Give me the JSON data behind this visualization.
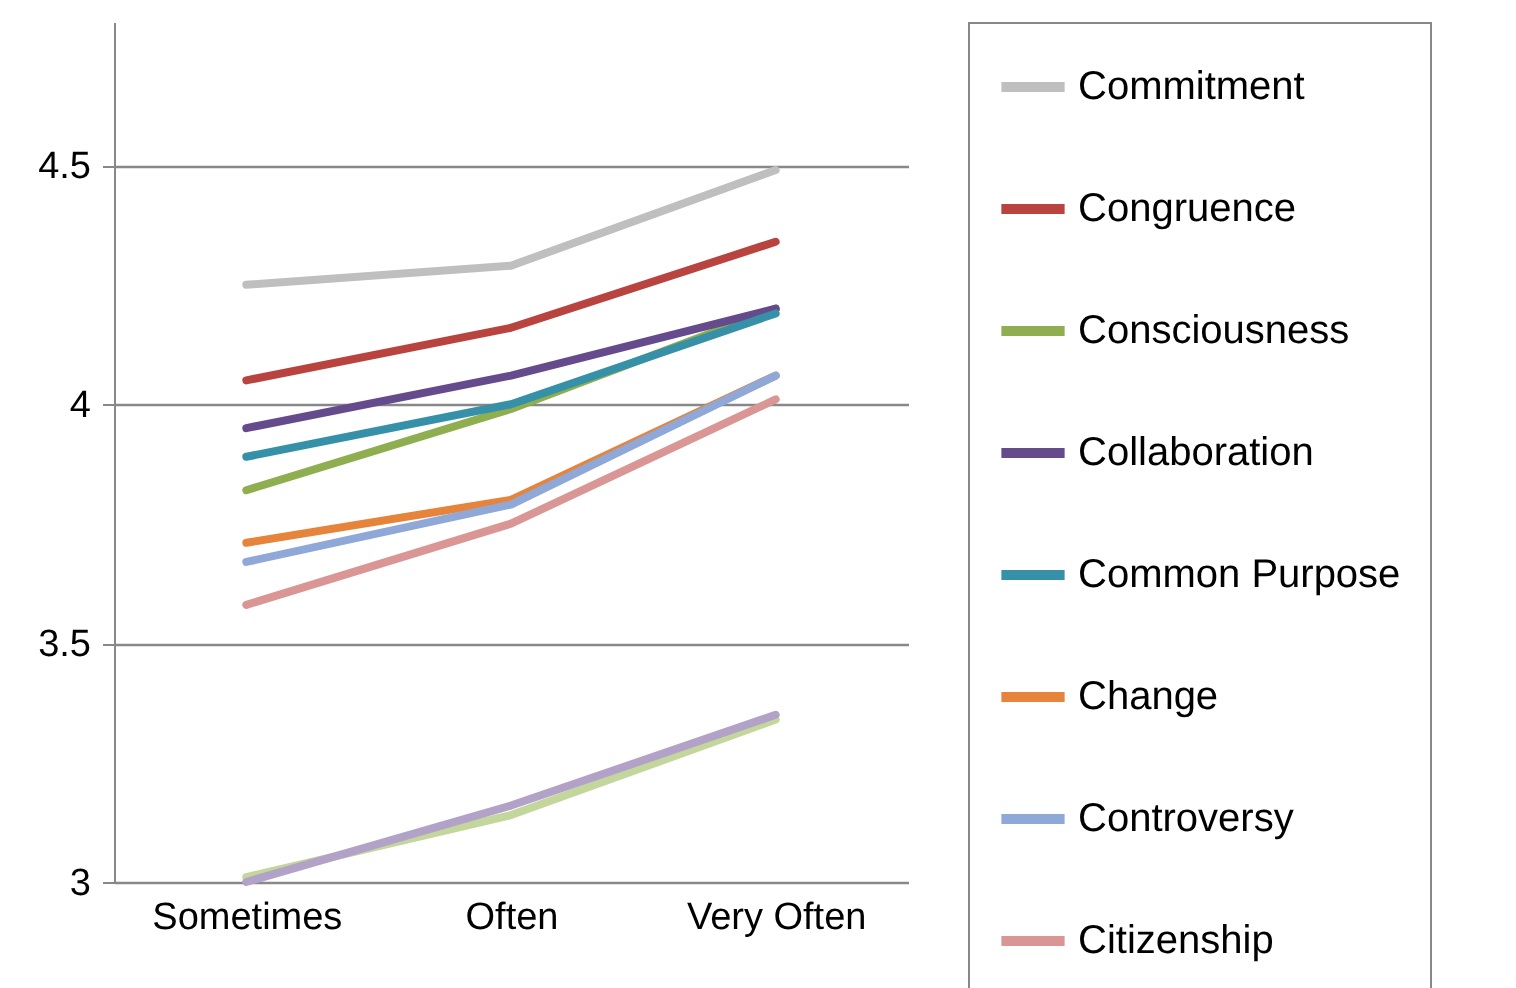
{
  "chart_data": {
    "type": "line",
    "categories": [
      "Sometimes",
      "Often",
      "Very Often"
    ],
    "ylim": [
      3,
      4.8
    ],
    "yticks": [
      3,
      3.5,
      4,
      4.5
    ],
    "grid": "y",
    "legend": "right",
    "line_style": "solid",
    "marker": "none",
    "series": [
      {
        "name": "Commitment",
        "color": "#bfbfbf",
        "values": [
          4.25,
          4.29,
          4.49
        ]
      },
      {
        "name": "Congruence",
        "color": "#b8433f",
        "values": [
          4.05,
          4.16,
          4.34
        ]
      },
      {
        "name": "Consciousness",
        "color": "#8eae4f",
        "values": [
          3.82,
          3.99,
          4.2
        ]
      },
      {
        "name": "Collaboration",
        "color": "#654a8c",
        "values": [
          3.95,
          4.06,
          4.2
        ]
      },
      {
        "name": "Common Purpose",
        "color": "#3590a8",
        "values": [
          3.89,
          4.0,
          4.19
        ]
      },
      {
        "name": "Change",
        "color": "#e5843a",
        "values": [
          3.71,
          3.8,
          4.06
        ]
      },
      {
        "name": "Controversy",
        "color": "#8fa8d8",
        "values": [
          3.67,
          3.79,
          4.06
        ]
      },
      {
        "name": "Citizenship",
        "color": "#d99694",
        "values": [
          3.58,
          3.75,
          4.01
        ]
      },
      {
        "color": "#c3d69b",
        "values": [
          3.01,
          3.14,
          3.34
        ]
      },
      {
        "color": "#b3a2c7",
        "values": [
          3.0,
          3.16,
          3.35
        ]
      }
    ]
  }
}
